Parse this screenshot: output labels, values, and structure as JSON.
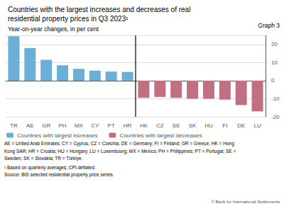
{
  "chart_data": {
    "type": "bar",
    "title": [
      "Countries with the largest increases and decreases of real",
      "residential property prices in Q3 2023¹"
    ],
    "subtitle": "Year-on-year changes, in per cent",
    "annotations": [
      "Graph 3",
      "AE = United Arab Emirates; CY = Cyprus; CZ = Czechia; DE = Germany; FI = Finland; GR = Greece; HK = Hong",
      "Kong SAR; HR = Croatia; HU = Hungary; LU = Luxembourg; MX = Mexico; PH = Philippines; PT = Portugal; SE =",
      "Sweden; SK = Slovakia; TR = Türkiye.",
      "¹ Based on quarterly averages; CPI-deflated.",
      "Source: BIS selected residential property price series.",
      "© Bank for International Settlements"
    ],
    "categories": [
      "TR",
      "AE",
      "GR",
      "PH",
      "MX",
      "CY",
      "PT",
      "HR",
      "HK",
      "CZ",
      "SE",
      "SK",
      "HU",
      "FI",
      "DE",
      "LU"
    ],
    "series": [
      {
        "name": "Countries with largest increases",
        "color": "#6baed6",
        "values": [
          24.5,
          18.0,
          11.5,
          8.5,
          6.5,
          5.5,
          5.0,
          4.8,
          null,
          null,
          null,
          null,
          null,
          null,
          null,
          null
        ]
      },
      {
        "name": "Countries with largest decreases",
        "color": "#c07080",
        "values": [
          null,
          null,
          null,
          null,
          null,
          null,
          null,
          null,
          -9.5,
          -9.0,
          -9.5,
          -10.0,
          -10.0,
          -10.5,
          -13.5,
          -17.0
        ]
      }
    ],
    "ylim": [
      -20,
      25
    ],
    "yticks": [
      -20,
      -10,
      0,
      10,
      20
    ],
    "grid": true,
    "legend": "lower left"
  }
}
